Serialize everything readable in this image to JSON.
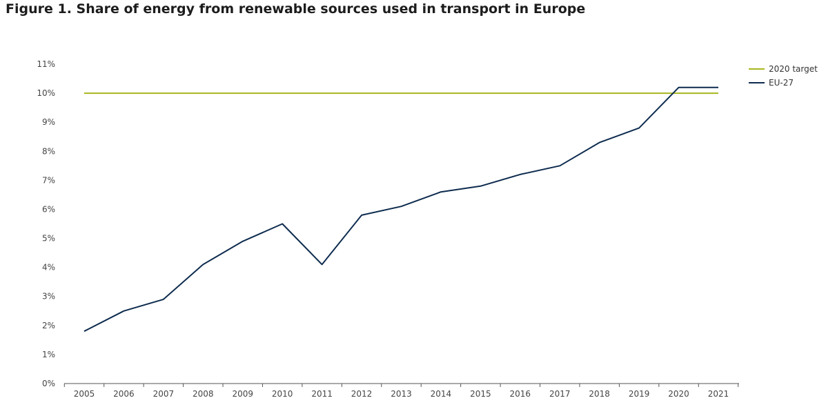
{
  "page": {
    "title": "Figure 1. Share of energy from renewable sources used in transport in Europe"
  },
  "chart_data": {
    "type": "line",
    "title": "Figure 1. Share of energy from renewable sources used in transport in Europe",
    "xlabel": "",
    "ylabel": "",
    "x": [
      "2005",
      "2006",
      "2007",
      "2008",
      "2009",
      "2010",
      "2011",
      "2012",
      "2013",
      "2014",
      "2015",
      "2016",
      "2017",
      "2018",
      "2019",
      "2020",
      "2021"
    ],
    "ylim": [
      0,
      11
    ],
    "yticks": [
      "0%",
      "1%",
      "2%",
      "3%",
      "4%",
      "5%",
      "6%",
      "7%",
      "8%",
      "9%",
      "10%",
      "11%"
    ],
    "grid": false,
    "legend_position": "top-right",
    "series": [
      {
        "name": "2020 target",
        "color": "#a8b61c",
        "values": [
          10,
          10,
          10,
          10,
          10,
          10,
          10,
          10,
          10,
          10,
          10,
          10,
          10,
          10,
          10,
          10,
          10
        ]
      },
      {
        "name": "EU-27",
        "color": "#0d2b4e",
        "values": [
          1.8,
          2.5,
          2.9,
          4.1,
          4.9,
          5.5,
          4.1,
          5.8,
          6.1,
          6.6,
          6.8,
          7.2,
          7.5,
          8.3,
          8.8,
          10.2,
          10.2
        ]
      }
    ]
  }
}
